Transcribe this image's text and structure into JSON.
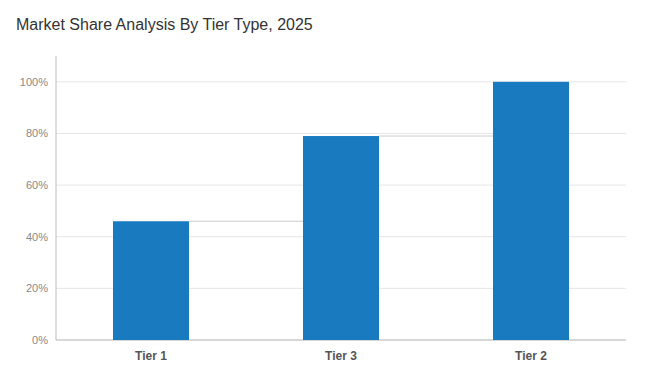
{
  "chart_data": {
    "type": "bar",
    "title": "Market Share Analysis By Tier Type, 2025",
    "categories": [
      "Tier 1",
      "Tier 3",
      "Tier 2"
    ],
    "values": [
      46,
      79,
      100
    ],
    "color": "#1a7abf",
    "ylim": [
      0,
      110
    ],
    "yticks": [
      {
        "value": 0,
        "label": "0%"
      },
      {
        "value": 20,
        "label": "20%"
      },
      {
        "value": 40,
        "label": "40%"
      },
      {
        "value": 60,
        "label": "60%"
      },
      {
        "value": 80,
        "label": "80%"
      },
      {
        "value": 100,
        "label": "100%"
      }
    ],
    "grid": true
  }
}
